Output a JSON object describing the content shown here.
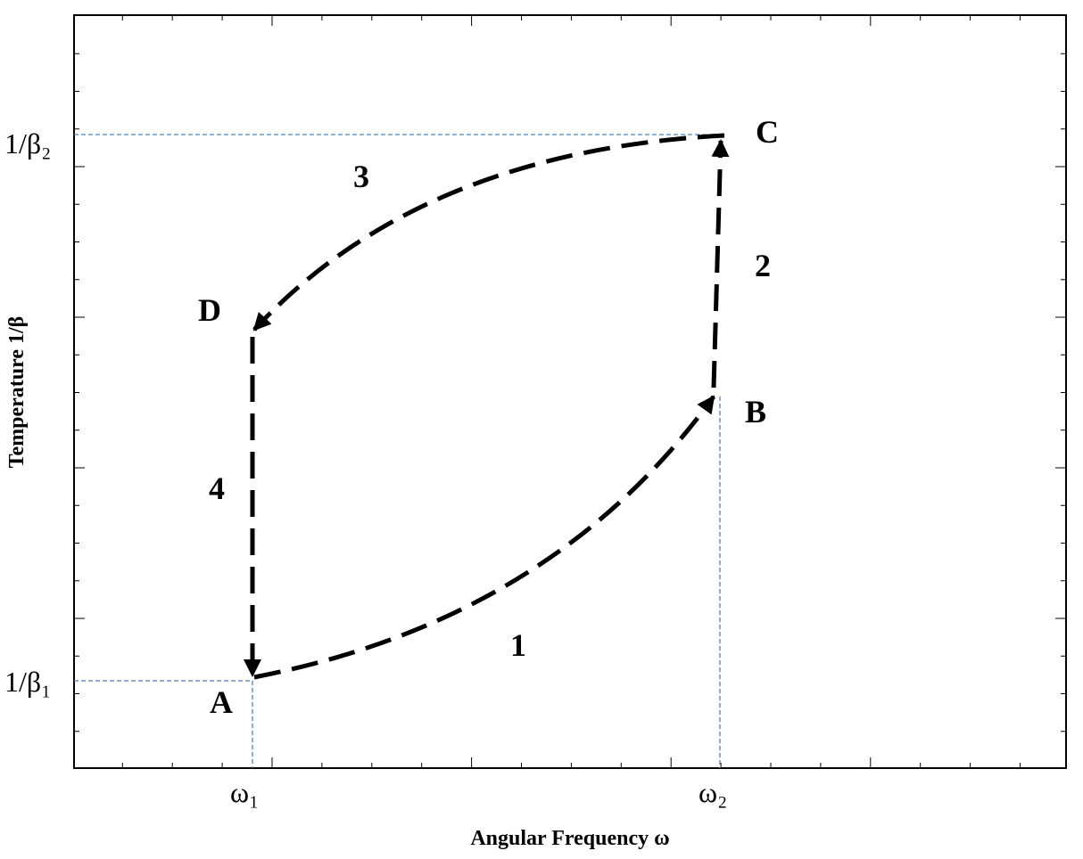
{
  "axes": {
    "y_label": "Temperature  1/β",
    "x_label": "Angular Frequency ω"
  },
  "ticks": {
    "y": [
      "1/β₂",
      "1/β₁"
    ],
    "x": [
      "ω₁",
      "ω₂"
    ]
  },
  "points": [
    "A",
    "B",
    "C",
    "D"
  ],
  "processes": [
    "1",
    "2",
    "3",
    "4"
  ]
}
